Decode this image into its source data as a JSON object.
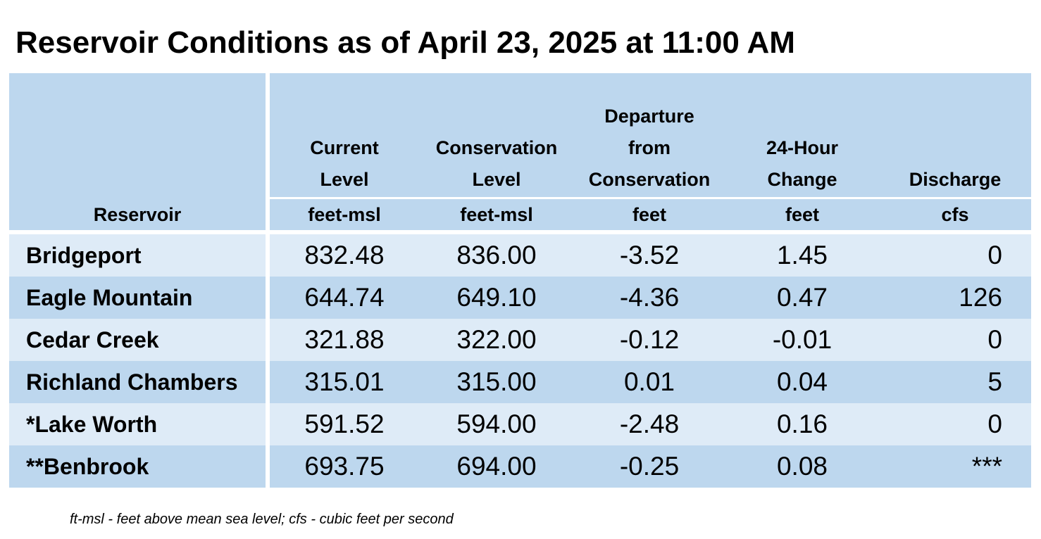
{
  "title": "Reservoir Conditions as of April 23, 2025 at 11:00 AM",
  "header": {
    "reservoir": "Reservoir",
    "columns": [
      {
        "lines": [
          "Current",
          "Level"
        ],
        "unit": "feet-msl"
      },
      {
        "lines": [
          "Conservation",
          "Level"
        ],
        "unit": "feet-msl"
      },
      {
        "lines": [
          "Departure",
          "from",
          "Conservation"
        ],
        "unit": "feet"
      },
      {
        "lines": [
          "24-Hour",
          "Change"
        ],
        "unit": "feet"
      },
      {
        "lines": [
          "Discharge"
        ],
        "unit": "cfs"
      }
    ]
  },
  "rows": [
    {
      "name": "Bridgeport",
      "current": "832.48",
      "conservation": "836.00",
      "departure": "-3.52",
      "change": "1.45",
      "discharge": "0"
    },
    {
      "name": "Eagle Mountain",
      "current": "644.74",
      "conservation": "649.10",
      "departure": "-4.36",
      "change": "0.47",
      "discharge": "126"
    },
    {
      "name": "Cedar Creek",
      "current": "321.88",
      "conservation": "322.00",
      "departure": "-0.12",
      "change": "-0.01",
      "discharge": "0"
    },
    {
      "name": "Richland Chambers",
      "current": "315.01",
      "conservation": "315.00",
      "departure": "0.01",
      "change": "0.04",
      "discharge": "5"
    },
    {
      "name": "*Lake Worth",
      "current": "591.52",
      "conservation": "594.00",
      "departure": "-2.48",
      "change": "0.16",
      "discharge": "0"
    },
    {
      "name": "**Benbrook",
      "current": "693.75",
      "conservation": "694.00",
      "departure": "-0.25",
      "change": "0.08",
      "discharge": "***"
    }
  ],
  "footnote": "ft-msl - feet above mean sea level; cfs - cubic feet per second",
  "colors": {
    "header_bg": "#bdd7ee",
    "row_light": "#deebf7",
    "row_dark": "#bdd7ee"
  }
}
